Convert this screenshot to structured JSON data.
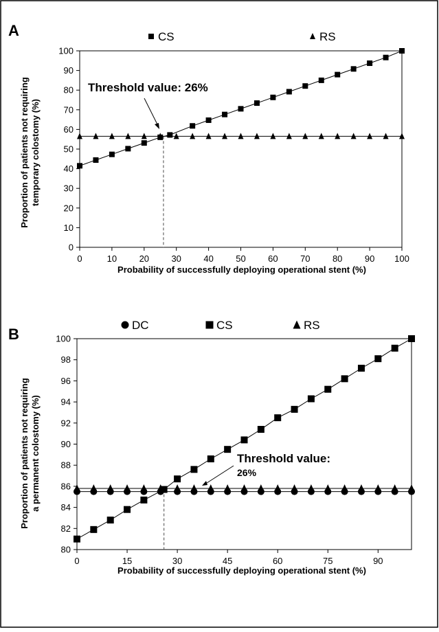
{
  "chart_data": [
    {
      "panel": "A",
      "type": "line",
      "legend": [
        {
          "symbol": "square",
          "label": "CS"
        },
        {
          "symbol": "triangle",
          "label": "RS"
        }
      ],
      "xlabel": "Probability of successfully deploying operational stent (%)",
      "ylabel": [
        "Proportion of patients not requiring",
        "temporary colostomy (%)"
      ],
      "xlim": [
        0,
        100
      ],
      "ylim": [
        0,
        100
      ],
      "xticks": [
        0,
        10,
        20,
        30,
        40,
        50,
        60,
        70,
        80,
        90,
        100
      ],
      "yticks": [
        0,
        10,
        20,
        30,
        40,
        50,
        60,
        70,
        80,
        90,
        100
      ],
      "series": [
        {
          "name": "CS",
          "marker": "square",
          "x": [
            0,
            5,
            10,
            15,
            20,
            25,
            28,
            35,
            40,
            45,
            50,
            55,
            60,
            65,
            70,
            75,
            80,
            85,
            90,
            95,
            100
          ],
          "y": [
            41.5,
            44.4,
            47.3,
            50.2,
            53.1,
            56.0,
            57.2,
            61.8,
            64.7,
            67.6,
            70.5,
            73.4,
            76.3,
            79.2,
            82.1,
            85.0,
            87.9,
            90.8,
            93.7,
            96.6,
            100
          ]
        },
        {
          "name": "RS",
          "marker": "triangle",
          "x": [
            0,
            5,
            10,
            15,
            20,
            25,
            30,
            35,
            40,
            45,
            50,
            55,
            60,
            65,
            70,
            75,
            80,
            85,
            90,
            95,
            100
          ],
          "y": [
            56.5,
            56.5,
            56.5,
            56.5,
            56.5,
            56.5,
            56.5,
            56.5,
            56.5,
            56.5,
            56.5,
            56.5,
            56.5,
            56.5,
            56.5,
            56.5,
            56.5,
            56.5,
            56.5,
            56.5,
            56.5
          ]
        }
      ],
      "threshold_x": 26,
      "threshold_y": 56.5,
      "annotation": [
        "Threshold value: 26%"
      ]
    },
    {
      "panel": "B",
      "type": "line",
      "legend": [
        {
          "symbol": "circle",
          "label": "DC"
        },
        {
          "symbol": "square",
          "label": "CS"
        },
        {
          "symbol": "triangle",
          "label": "RS"
        }
      ],
      "xlabel": "Probability of successfully deploying operational stent (%)",
      "ylabel": [
        "Proportion of patients not requiring",
        "a permanent colostomy (%)"
      ],
      "xlim": [
        0,
        100
      ],
      "ylim": [
        80,
        100
      ],
      "xticks": [
        0,
        15,
        30,
        45,
        60,
        75,
        90
      ],
      "yticks": [
        80,
        82,
        84,
        86,
        88,
        90,
        92,
        94,
        96,
        98,
        100
      ],
      "series": [
        {
          "name": "DC",
          "marker": "circle",
          "x": [
            0,
            5,
            10,
            15,
            20,
            25,
            30,
            35,
            40,
            45,
            50,
            55,
            60,
            65,
            70,
            75,
            80,
            85,
            90,
            95,
            100
          ],
          "y": [
            85.5,
            85.5,
            85.5,
            85.5,
            85.5,
            85.5,
            85.5,
            85.5,
            85.5,
            85.5,
            85.5,
            85.5,
            85.5,
            85.5,
            85.5,
            85.5,
            85.5,
            85.5,
            85.5,
            85.5,
            85.5
          ]
        },
        {
          "name": "CS",
          "marker": "square",
          "x": [
            0,
            5,
            10,
            15,
            20,
            26,
            30,
            35,
            40,
            45,
            50,
            55,
            60,
            65,
            70,
            75,
            80,
            85,
            90,
            95,
            100
          ],
          "y": [
            81.0,
            81.9,
            82.8,
            83.8,
            84.7,
            85.7,
            86.7,
            87.6,
            88.6,
            89.5,
            90.4,
            91.4,
            92.5,
            93.3,
            94.3,
            95.2,
            96.2,
            97.2,
            98.1,
            99.1,
            100
          ]
        },
        {
          "name": "RS",
          "marker": "triangle",
          "x": [
            0,
            5,
            10,
            15,
            20,
            25,
            30,
            35,
            40,
            45,
            50,
            55,
            60,
            65,
            70,
            75,
            80,
            85,
            90,
            95,
            100
          ],
          "y": [
            85.8,
            85.8,
            85.8,
            85.8,
            85.8,
            85.8,
            85.8,
            85.8,
            85.8,
            85.8,
            85.8,
            85.8,
            85.8,
            85.8,
            85.8,
            85.8,
            85.8,
            85.8,
            85.8,
            85.8,
            85.8
          ]
        }
      ],
      "threshold_x": 26,
      "threshold_y": 85.7,
      "annotation": [
        "Threshold value:",
        "26%"
      ]
    }
  ]
}
